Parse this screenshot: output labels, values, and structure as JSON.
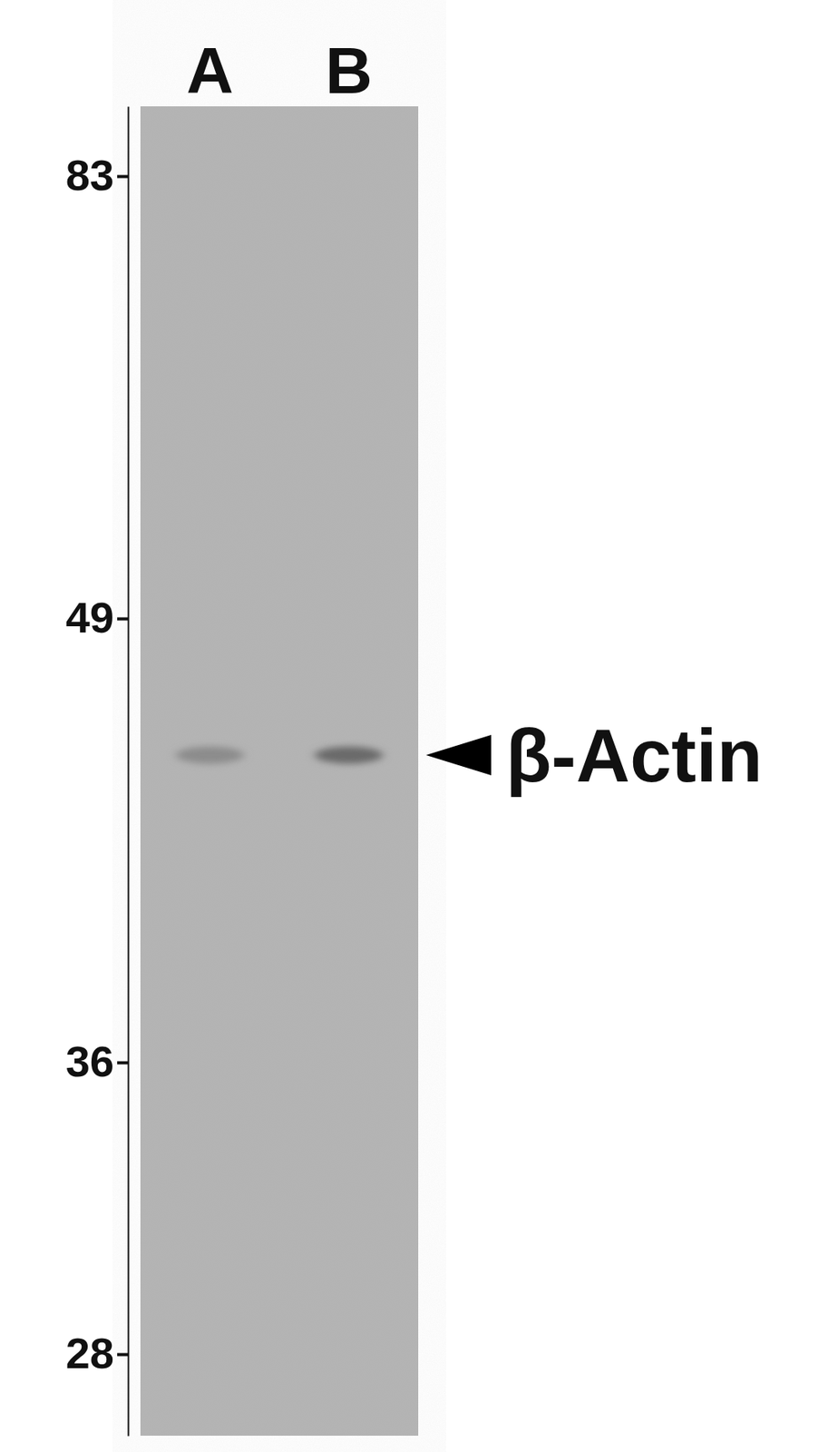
{
  "chart_data": {
    "type": "blot",
    "categories": [
      "A",
      "B"
    ],
    "values": [
      45,
      45
    ],
    "colors": [
      "#8c8c8c",
      "#6a6a6a"
    ],
    "ylim": [
      26,
      88
    ],
    "yticks": [
      83,
      49,
      36,
      28
    ],
    "annotations": [
      {
        "text": "β-Actin",
        "value": 45
      }
    ]
  }
}
